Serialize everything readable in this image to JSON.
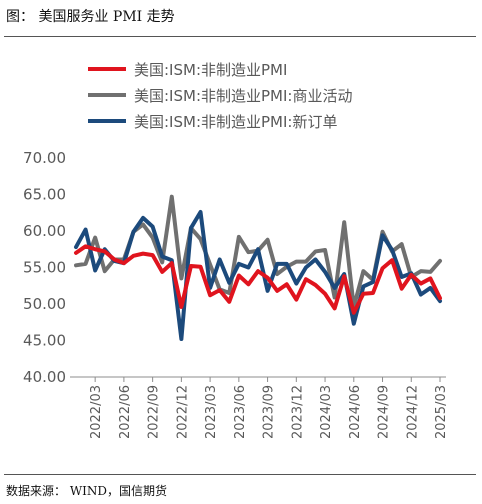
{
  "figure": {
    "title": "图：  美国服务业 PMI 走势",
    "source": "数据来源：  WIND，国信期货"
  },
  "chart_data": {
    "type": "line",
    "title": "",
    "xlabel": "",
    "ylabel": "",
    "ylim": [
      40,
      70
    ],
    "yticks": [
      "40.00",
      "45.00",
      "50.00",
      "55.00",
      "60.00",
      "65.00",
      "70.00"
    ],
    "legend_position": "top",
    "grid": false,
    "x": [
      "2022/01",
      "2022/02",
      "2022/03",
      "2022/04",
      "2022/05",
      "2022/06",
      "2022/07",
      "2022/08",
      "2022/09",
      "2022/10",
      "2022/11",
      "2022/12",
      "2023/01",
      "2023/02",
      "2023/03",
      "2023/04",
      "2023/05",
      "2023/06",
      "2023/07",
      "2023/08",
      "2023/09",
      "2023/10",
      "2023/11",
      "2023/12",
      "2024/01",
      "2024/02",
      "2024/03",
      "2024/04",
      "2024/05",
      "2024/06",
      "2024/07",
      "2024/08",
      "2024/09",
      "2024/10",
      "2024/11",
      "2024/12",
      "2025/01",
      "2025/02",
      "2025/03"
    ],
    "xtick_labels": [
      "2022/03",
      "2022/06",
      "2022/09",
      "2022/12",
      "2023/03",
      "2023/06",
      "2023/09",
      "2023/12",
      "2024/03",
      "2024/06",
      "2024/09",
      "2024/12",
      "2025/03"
    ],
    "series": [
      {
        "name": "美国:ISM:非制造业PMI",
        "color": "#e0141e",
        "values": [
          57.0,
          57.9,
          57.5,
          57.2,
          56.1,
          55.6,
          56.6,
          56.9,
          56.7,
          54.4,
          55.6,
          49.6,
          55.2,
          55.1,
          51.2,
          51.9,
          50.3,
          53.9,
          52.7,
          54.5,
          53.6,
          51.8,
          52.7,
          50.6,
          53.4,
          52.6,
          51.4,
          49.4,
          53.8,
          48.8,
          51.4,
          51.5,
          54.9,
          56.0,
          52.1,
          54.0,
          52.8,
          53.5,
          50.8
        ]
      },
      {
        "name": "美国:ISM:非制造业PMI:商业活动",
        "color": "#707070",
        "values": [
          55.3,
          55.5,
          59.1,
          54.5,
          56.1,
          56.1,
          59.9,
          60.9,
          59.1,
          55.7,
          64.7,
          53.5,
          60.4,
          58.9,
          55.4,
          52.0,
          51.5,
          59.2,
          57.1,
          57.3,
          58.8,
          54.1,
          55.1,
          55.8,
          55.8,
          57.2,
          57.4,
          50.9,
          61.2,
          49.6,
          54.5,
          53.3,
          59.9,
          57.2,
          58.2,
          53.7,
          54.5,
          54.4,
          55.9
        ]
      },
      {
        "name": "美国:ISM:非制造业PMI:新订单",
        "color": "#1c4a7c",
        "values": [
          57.8,
          60.2,
          54.6,
          57.5,
          55.9,
          55.6,
          59.9,
          61.8,
          60.6,
          56.5,
          56.0,
          45.2,
          60.4,
          62.6,
          52.2,
          56.1,
          52.9,
          55.5,
          55.0,
          57.5,
          51.8,
          55.5,
          55.5,
          52.8,
          55.0,
          56.1,
          54.4,
          52.2,
          54.1,
          47.3,
          52.4,
          53.0,
          59.4,
          57.4,
          53.7,
          54.2,
          51.3,
          52.2,
          50.4
        ]
      }
    ]
  }
}
